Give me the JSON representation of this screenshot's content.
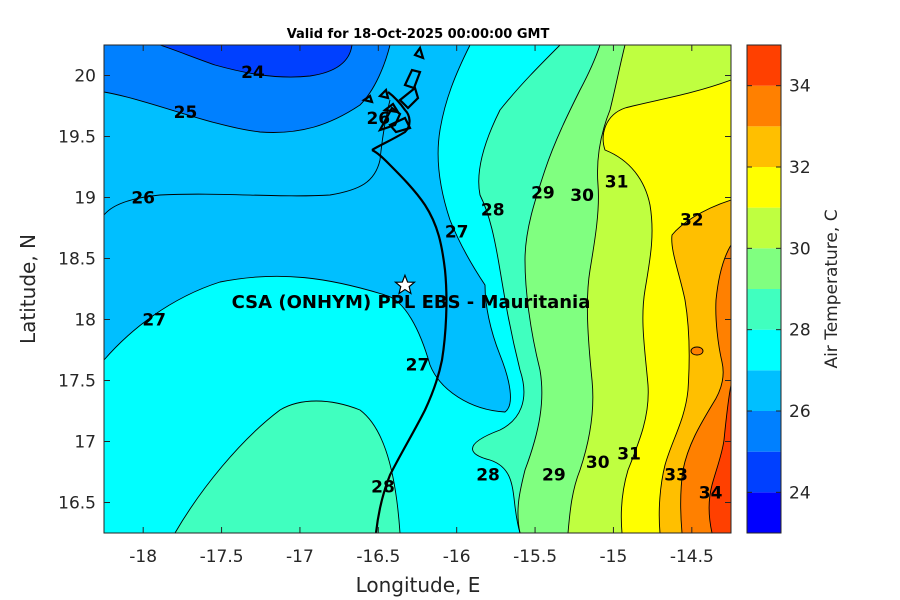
{
  "title": "Valid for 18-Oct-2025 00:00:00 GMT",
  "site_label": "CSA (ONHYM) PPL EBS  - Mauritania",
  "site": {
    "lon": -16.33,
    "lat": 18.28,
    "marker": "star-icon"
  },
  "x_axis": {
    "label": "Longitude, E",
    "range": [
      -18.25,
      -14.25
    ],
    "ticks": [
      -18,
      -17.5,
      -17,
      -16.5,
      -16,
      -15.5,
      -15,
      -14.5
    ],
    "tick_labels": [
      "-18",
      "-17.5",
      "-17",
      "-16.5",
      "-16",
      "-15.5",
      "-15",
      "-14.5"
    ]
  },
  "y_axis": {
    "label": "Latitude, N",
    "range": [
      16.25,
      20.25
    ],
    "ticks": [
      16.5,
      17,
      17.5,
      18,
      18.5,
      19,
      19.5,
      20
    ],
    "tick_labels": [
      "16.5",
      "17",
      "17.5",
      "18",
      "18.5",
      "19",
      "19.5",
      "20"
    ]
  },
  "colorbar": {
    "label": "Air Temperature, C",
    "range": [
      23,
      35
    ],
    "ticks": [
      24,
      26,
      28,
      30,
      32,
      34
    ],
    "tick_labels": [
      "24",
      "26",
      "28",
      "30",
      "32",
      "34"
    ],
    "colors": [
      "#0000ff",
      "#0040ff",
      "#0080ff",
      "#00bfff",
      "#00ffff",
      "#40ffbf",
      "#80ff80",
      "#bfff40",
      "#ffff00",
      "#ffbf00",
      "#ff8000",
      "#ff4000"
    ]
  },
  "contour_labels": [
    {
      "text": "24",
      "lon": -17.3,
      "lat": 20.03
    },
    {
      "text": "25",
      "lon": -17.73,
      "lat": 19.7
    },
    {
      "text": "26",
      "lon": -18.0,
      "lat": 19.0
    },
    {
      "text": "27",
      "lon": -17.93,
      "lat": 18.0
    },
    {
      "text": "27",
      "lon": -16.0,
      "lat": 18.72
    },
    {
      "text": "27",
      "lon": -16.25,
      "lat": 17.63
    },
    {
      "text": "28",
      "lon": -15.77,
      "lat": 18.9
    },
    {
      "text": "28",
      "lon": -16.47,
      "lat": 16.63
    },
    {
      "text": "28",
      "lon": -15.8,
      "lat": 16.73
    },
    {
      "text": "29",
      "lon": -15.45,
      "lat": 19.04
    },
    {
      "text": "29",
      "lon": -15.38,
      "lat": 16.73
    },
    {
      "text": "30",
      "lon": -15.2,
      "lat": 19.02
    },
    {
      "text": "30",
      "lon": -15.1,
      "lat": 16.83
    },
    {
      "text": "31",
      "lon": -14.98,
      "lat": 19.13
    },
    {
      "text": "31",
      "lon": -14.9,
      "lat": 16.9
    },
    {
      "text": "32",
      "lon": -14.5,
      "lat": 18.82
    },
    {
      "text": "33",
      "lon": -14.6,
      "lat": 16.73
    },
    {
      "text": "34",
      "lon": -14.38,
      "lat": 16.58
    },
    {
      "text": "26",
      "lon": -16.5,
      "lat": 19.65
    }
  ]
}
